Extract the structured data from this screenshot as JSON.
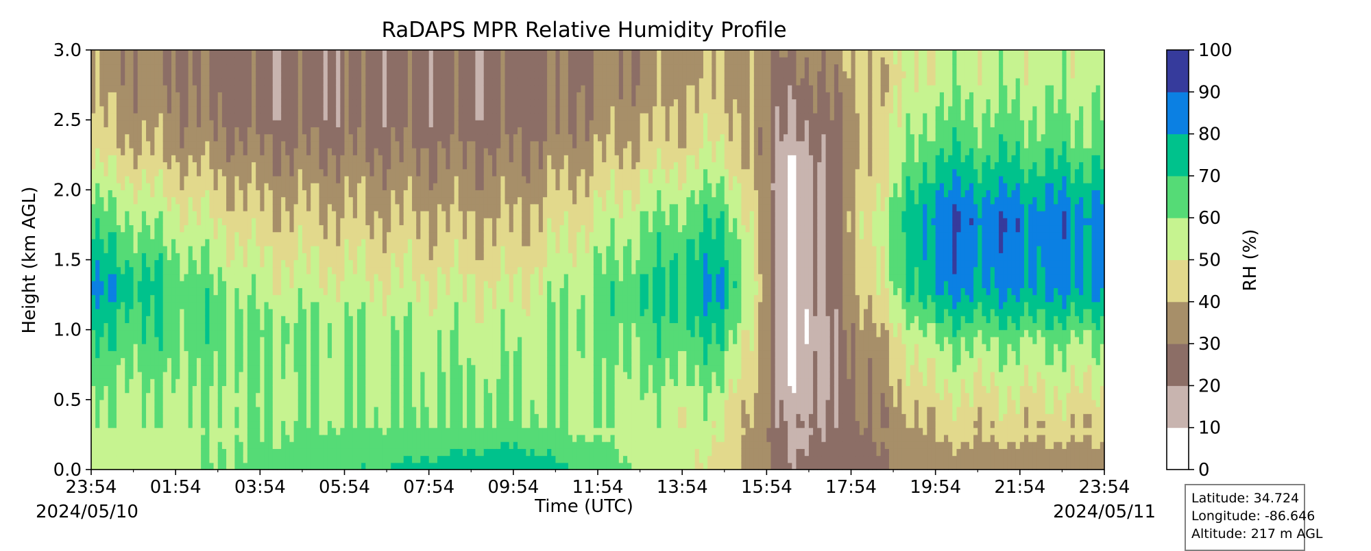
{
  "chart_data": {
    "type": "heatmap",
    "subtype": "filled-contour",
    "title": "RaDAPS MPR Relative Humidity Profile",
    "xlabel": "Time (UTC)",
    "ylabel": "Height (km AGL)",
    "x_ticks": [
      "23:54",
      "01:54",
      "03:54",
      "05:54",
      "07:54",
      "09:54",
      "11:54",
      "13:54",
      "15:54",
      "17:54",
      "19:54",
      "21:54",
      "23:54"
    ],
    "x_date_labels": {
      "start": "2024/05/10",
      "end": "2024/05/11"
    },
    "y_ticks": [
      "0.0",
      "0.5",
      "1.0",
      "1.5",
      "2.0",
      "2.5",
      "3.0"
    ],
    "ylim": [
      0,
      3.0
    ],
    "xlim_hours": [
      0,
      24
    ],
    "colorbar": {
      "label": "RH (%)",
      "ticks": [
        "0",
        "10",
        "20",
        "30",
        "40",
        "50",
        "60",
        "70",
        "80",
        "90",
        "100"
      ],
      "levels": [
        0,
        10,
        20,
        30,
        40,
        50,
        60,
        70,
        80,
        90,
        100
      ],
      "colors": [
        "#ffffff",
        "#c8b4af",
        "#8c6e66",
        "#a78f69",
        "#e2d98c",
        "#c6f390",
        "#55db76",
        "#00c28c",
        "#0b80e3",
        "#363b9c"
      ]
    },
    "approx_profile_summary": [
      {
        "time": "00:00",
        "rh_by_height": {
          "0.0": 55,
          "0.5": 58,
          "1.0": 70,
          "1.3": 82,
          "1.8": 65,
          "2.3": 45,
          "2.8": 35
        }
      },
      {
        "time": "04:00",
        "rh_by_height": {
          "0.0": 62,
          "0.5": 58,
          "1.0": 62,
          "1.5": 50,
          "2.0": 38,
          "2.5": 25,
          "3.0": 25
        }
      },
      {
        "time": "10:00",
        "rh_by_height": {
          "0.0": 80,
          "0.3": 62,
          "1.0": 56,
          "1.5": 45,
          "2.0": 35,
          "2.5": 25,
          "3.0": 25
        }
      },
      {
        "time": "15:00",
        "rh_by_height": {
          "0.0": 45,
          "0.5": 55,
          "1.0": 72,
          "1.3": 82,
          "1.8": 70,
          "2.3": 50,
          "2.8": 40
        }
      },
      {
        "time": "16:40",
        "rh_by_height": {
          "0.0": 20,
          "1.0": 5,
          "2.0": 5,
          "3.0": 30
        }
      },
      {
        "time": "20:00",
        "rh_by_height": {
          "0.0": 35,
          "0.4": 45,
          "0.9": 60,
          "1.3": 82,
          "1.8": 88,
          "2.3": 68,
          "2.8": 55
        }
      },
      {
        "time": "23:30",
        "rh_by_height": {
          "0.0": 35,
          "0.4": 45,
          "0.9": 60,
          "1.3": 82,
          "1.8": 85,
          "2.3": 65,
          "2.8": 55
        }
      }
    ]
  },
  "station": {
    "latitude": "Latitude: 34.724",
    "longitude": "Longitude: -86.646",
    "altitude": "Altitude: 217 m AGL"
  }
}
